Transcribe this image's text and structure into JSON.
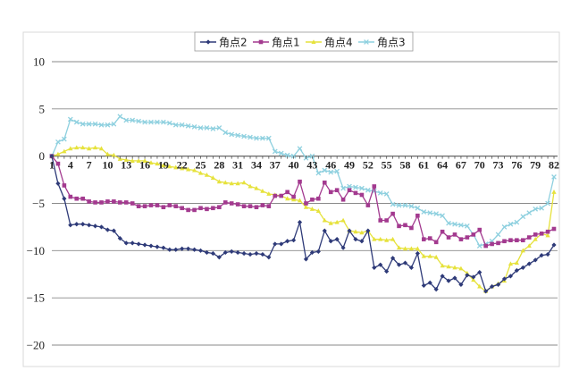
{
  "chart_data": {
    "type": "line",
    "title": "",
    "xlabel": "",
    "ylabel": "",
    "ylim": [
      -20,
      10
    ],
    "yticks": [
      10,
      5,
      0,
      -5,
      -10,
      -15,
      -20
    ],
    "ytick_labels": [
      "10",
      "5",
      "0",
      "−5",
      "−10",
      "−15",
      "−20"
    ],
    "x_tick_labels": [
      "1",
      "4",
      "7",
      "10",
      "13",
      "16",
      "19",
      "22",
      "25",
      "28",
      "31",
      "34",
      "37",
      "40",
      "43",
      "46",
      "49",
      "52",
      "55",
      "58",
      "61",
      "64",
      "67",
      "70",
      "73",
      "76",
      "79",
      "82"
    ],
    "x": [
      1,
      2,
      3,
      4,
      5,
      6,
      7,
      8,
      9,
      10,
      11,
      12,
      13,
      14,
      15,
      16,
      17,
      18,
      19,
      20,
      21,
      22,
      23,
      24,
      25,
      26,
      27,
      28,
      29,
      30,
      31,
      32,
      33,
      34,
      35,
      36,
      37,
      38,
      39,
      40,
      41,
      42,
      43,
      44,
      45,
      46,
      47,
      48,
      49,
      50,
      51,
      52,
      53,
      54,
      55,
      56,
      57,
      58,
      59,
      60,
      61,
      62,
      63,
      64,
      65,
      66,
      67,
      68,
      69,
      70,
      71,
      72,
      73,
      74,
      75,
      76,
      77,
      78,
      79,
      80,
      81,
      82
    ],
    "grid": "horizontal",
    "legend_position": "top",
    "series": [
      {
        "name": "角点2",
        "color": "#2e3a78",
        "marker": "diamond",
        "values": [
          0,
          -2.9,
          -4.5,
          -7.3,
          -7.2,
          -7.2,
          -7.3,
          -7.4,
          -7.5,
          -7.8,
          -7.9,
          -8.7,
          -9.2,
          -9.2,
          -9.3,
          -9.4,
          -9.5,
          -9.6,
          -9.7,
          -9.9,
          -9.9,
          -9.8,
          -9.8,
          -9.9,
          -10.0,
          -10.2,
          -10.3,
          -10.7,
          -10.2,
          -10.1,
          -10.2,
          -10.3,
          -10.4,
          -10.3,
          -10.4,
          -10.7,
          -9.3,
          -9.3,
          -9.0,
          -8.9,
          -7.0,
          -10.9,
          -10.2,
          -10.1,
          -7.9,
          -9.0,
          -8.8,
          -9.7,
          -7.9,
          -8.8,
          -9.0,
          -7.9,
          -11.8,
          -11.5,
          -12.2,
          -10.8,
          -11.5,
          -11.3,
          -11.8,
          -10.3,
          -13.7,
          -13.4,
          -14.1,
          -12.7,
          -13.2,
          -12.9,
          -13.6,
          -12.6,
          -12.8,
          -12.3,
          -14.3,
          -13.8,
          -13.6,
          -13.0,
          -12.7,
          -12.1,
          -11.8,
          -11.4,
          -11.0,
          -10.5,
          -10.4,
          -9.4
        ]
      },
      {
        "name": "角点1",
        "color": "#a33a8f",
        "marker": "square",
        "values": [
          0,
          -0.8,
          -3.1,
          -4.3,
          -4.5,
          -4.5,
          -4.8,
          -4.9,
          -4.9,
          -4.8,
          -4.8,
          -4.9,
          -4.9,
          -5.0,
          -5.3,
          -5.3,
          -5.2,
          -5.2,
          -5.4,
          -5.2,
          -5.3,
          -5.5,
          -5.7,
          -5.7,
          -5.5,
          -5.6,
          -5.5,
          -5.4,
          -4.9,
          -5.0,
          -5.1,
          -5.3,
          -5.3,
          -5.4,
          -5.2,
          -5.3,
          -4.2,
          -4.2,
          -3.8,
          -4.3,
          -2.7,
          -5.0,
          -4.6,
          -4.5,
          -2.8,
          -3.8,
          -3.6,
          -4.6,
          -3.6,
          -3.9,
          -4.1,
          -5.2,
          -3.2,
          -6.8,
          -6.8,
          -6.1,
          -7.4,
          -7.3,
          -7.6,
          -6.3,
          -8.8,
          -8.7,
          -9.1,
          -8.0,
          -8.6,
          -8.3,
          -8.8,
          -8.6,
          -8.3,
          -7.8,
          -9.5,
          -9.3,
          -9.2,
          -9.0,
          -8.9,
          -8.9,
          -8.9,
          -8.6,
          -8.3,
          -8.2,
          -8.0,
          -7.7
        ]
      },
      {
        "name": "角点4",
        "color": "#e6e23c",
        "marker": "triangle",
        "values": [
          0,
          0.2,
          0.5,
          0.8,
          0.9,
          0.9,
          0.8,
          0.9,
          0.8,
          0.2,
          0.1,
          -0.3,
          -0.4,
          -0.5,
          -0.5,
          -0.5,
          -0.7,
          -0.8,
          -1.0,
          -1.1,
          -1.2,
          -1.3,
          -1.4,
          -1.5,
          -1.8,
          -2.0,
          -2.3,
          -2.7,
          -2.8,
          -2.9,
          -2.9,
          -2.8,
          -3.2,
          -3.4,
          -3.7,
          -4.0,
          -4.1,
          -4.2,
          -4.5,
          -4.6,
          -4.7,
          -5.4,
          -5.6,
          -5.8,
          -6.8,
          -7.1,
          -7.0,
          -6.8,
          -7.9,
          -8.0,
          -8.1,
          -7.9,
          -8.8,
          -8.8,
          -8.9,
          -8.8,
          -9.7,
          -9.8,
          -9.8,
          -9.8,
          -10.6,
          -10.6,
          -10.7,
          -11.6,
          -11.7,
          -11.8,
          -11.9,
          -12.4,
          -13.1,
          -13.8,
          -14.3,
          -13.8,
          -13.5,
          -13.2,
          -11.4,
          -11.3,
          -10.0,
          -9.5,
          -8.8,
          -8.2,
          -8.4,
          -3.8
        ]
      },
      {
        "name": "角点3",
        "color": "#8ed0df",
        "marker": "cross",
        "values": [
          0,
          1.5,
          1.8,
          3.9,
          3.6,
          3.4,
          3.4,
          3.4,
          3.3,
          3.3,
          3.4,
          4.2,
          3.8,
          3.8,
          3.7,
          3.6,
          3.6,
          3.6,
          3.6,
          3.5,
          3.3,
          3.3,
          3.2,
          3.1,
          3.0,
          3.0,
          2.9,
          3.0,
          2.5,
          2.3,
          2.2,
          2.1,
          2.0,
          1.9,
          1.9,
          1.9,
          0.5,
          0.3,
          0.1,
          0.0,
          0.8,
          -0.2,
          0.0,
          -1.8,
          -1.5,
          -1.7,
          -1.6,
          -3.4,
          -3.2,
          -3.3,
          -3.4,
          -3.6,
          -3.7,
          -3.9,
          -4.0,
          -5.1,
          -5.2,
          -5.2,
          -5.3,
          -5.5,
          -5.9,
          -6.0,
          -6.1,
          -6.3,
          -7.1,
          -7.2,
          -7.3,
          -7.4,
          -8.3,
          -9.5,
          -9.3,
          -9.0,
          -8.3,
          -7.5,
          -7.2,
          -7.0,
          -6.4,
          -6.0,
          -5.6,
          -5.5,
          -5.0,
          -2.2
        ]
      }
    ]
  }
}
